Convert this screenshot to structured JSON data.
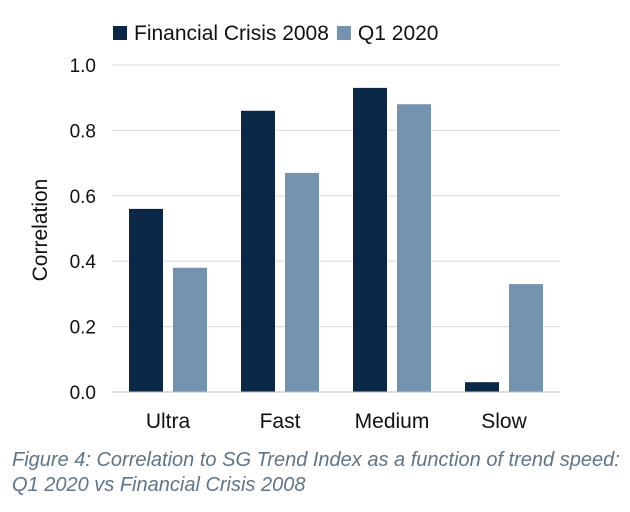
{
  "chart_data": {
    "type": "bar",
    "categories": [
      "Ultra",
      "Fast",
      "Medium",
      "Slow"
    ],
    "series": [
      {
        "name": "Financial Crisis 2008",
        "values": [
          0.56,
          0.86,
          0.93,
          0.03
        ],
        "color": "#0b2748"
      },
      {
        "name": "Q1 2020",
        "values": [
          0.38,
          0.67,
          0.88,
          0.33
        ],
        "color": "#7592ae"
      }
    ],
    "ylabel": "Correlation",
    "xlabel": "",
    "ylim": [
      0,
      1.0
    ],
    "yticks": [
      "0.0",
      "0.2",
      "0.4",
      "0.6",
      "0.8",
      "1.0"
    ],
    "grid": true,
    "legend": "top"
  },
  "caption": "Figure 4: Correlation to SG Trend Index as a function of trend speed: Q1 2020 vs Financial Crisis 2008"
}
